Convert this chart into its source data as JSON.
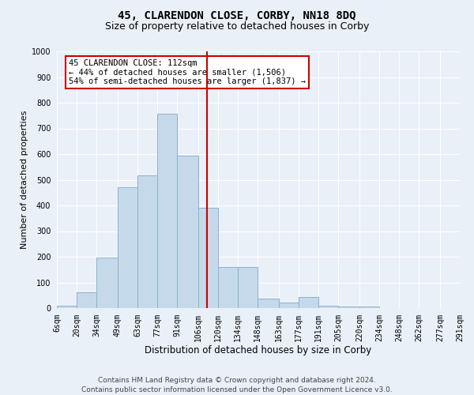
{
  "title": "45, CLARENDON CLOSE, CORBY, NN18 8DQ",
  "subtitle": "Size of property relative to detached houses in Corby",
  "xlabel": "Distribution of detached houses by size in Corby",
  "ylabel": "Number of detached properties",
  "bar_labels": [
    "6sqm",
    "20sqm",
    "34sqm",
    "49sqm",
    "63sqm",
    "77sqm",
    "91sqm",
    "106sqm",
    "120sqm",
    "134sqm",
    "148sqm",
    "163sqm",
    "177sqm",
    "191sqm",
    "205sqm",
    "220sqm",
    "234sqm",
    "248sqm",
    "262sqm",
    "277sqm",
    "291sqm"
  ],
  "bar_values": [
    10,
    62,
    197,
    470,
    518,
    757,
    595,
    390,
    160,
    160,
    38,
    22,
    42,
    10,
    7,
    7,
    0,
    0,
    0,
    0
  ],
  "bar_color": "#c6d9ea",
  "bar_edge_color": "#8ab4cc",
  "vline_x": 112,
  "vline_color": "#cc0000",
  "ylim": [
    0,
    1000
  ],
  "yticks": [
    0,
    100,
    200,
    300,
    400,
    500,
    600,
    700,
    800,
    900,
    1000
  ],
  "bin_edges": [
    6,
    20,
    34,
    49,
    63,
    77,
    91,
    106,
    120,
    134,
    148,
    163,
    177,
    191,
    205,
    220,
    234,
    248,
    262,
    277,
    291
  ],
  "annotation_text": "45 CLARENDON CLOSE: 112sqm\n← 44% of detached houses are smaller (1,506)\n54% of semi-detached houses are larger (1,837) →",
  "annotation_box_color": "#ffffff",
  "annotation_box_edge": "#cc0000",
  "footer_line1": "Contains HM Land Registry data © Crown copyright and database right 2024.",
  "footer_line2": "Contains public sector information licensed under the Open Government Licence v3.0.",
  "background_color": "#eaf0f8",
  "plot_background": "#eaf0f8",
  "grid_color": "#ffffff",
  "title_fontsize": 10,
  "subtitle_fontsize": 9,
  "xlabel_fontsize": 8.5,
  "ylabel_fontsize": 8,
  "tick_fontsize": 7,
  "annotation_fontsize": 7.5,
  "footer_fontsize": 6.5
}
